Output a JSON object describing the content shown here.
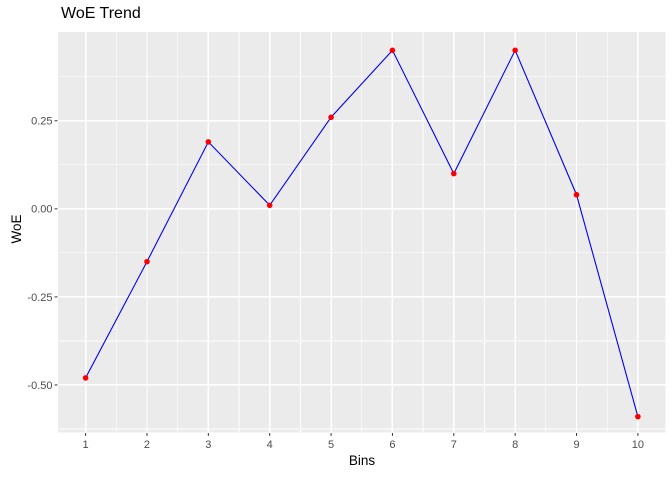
{
  "chart_data": {
    "type": "line",
    "title": "WoE Trend",
    "xlabel": "Bins",
    "ylabel": "WoE",
    "x": [
      1,
      2,
      3,
      4,
      5,
      6,
      7,
      8,
      9,
      10
    ],
    "y": [
      -0.48,
      -0.15,
      0.19,
      0.01,
      0.26,
      0.45,
      0.1,
      0.45,
      0.04,
      -0.59
    ],
    "x_tick_labels": [
      "1",
      "2",
      "3",
      "4",
      "5",
      "6",
      "7",
      "8",
      "9",
      "10"
    ],
    "y_tick_values": [
      0.25,
      0,
      -0.25,
      -0.5
    ],
    "y_tick_labels": [
      "0.25",
      "0.00",
      "-0.25",
      "-0.50"
    ],
    "xlim": [
      0.55,
      10.45
    ],
    "ylim": [
      -0.635,
      0.502
    ],
    "grid": "major-and-minor",
    "legend_position": "none",
    "marker": "filled-circle",
    "style": {
      "page_bg": "#FFFFFF",
      "panel_bg": "#EBEBEB",
      "grid_color": "#FFFFFF",
      "line_color": "#0000F5",
      "point_color": "#FF0000",
      "tick_label_color": "#4D4D4D",
      "tick_mark_color": "#333333",
      "title_color": "#000000",
      "axis_title_color": "#000000"
    }
  }
}
